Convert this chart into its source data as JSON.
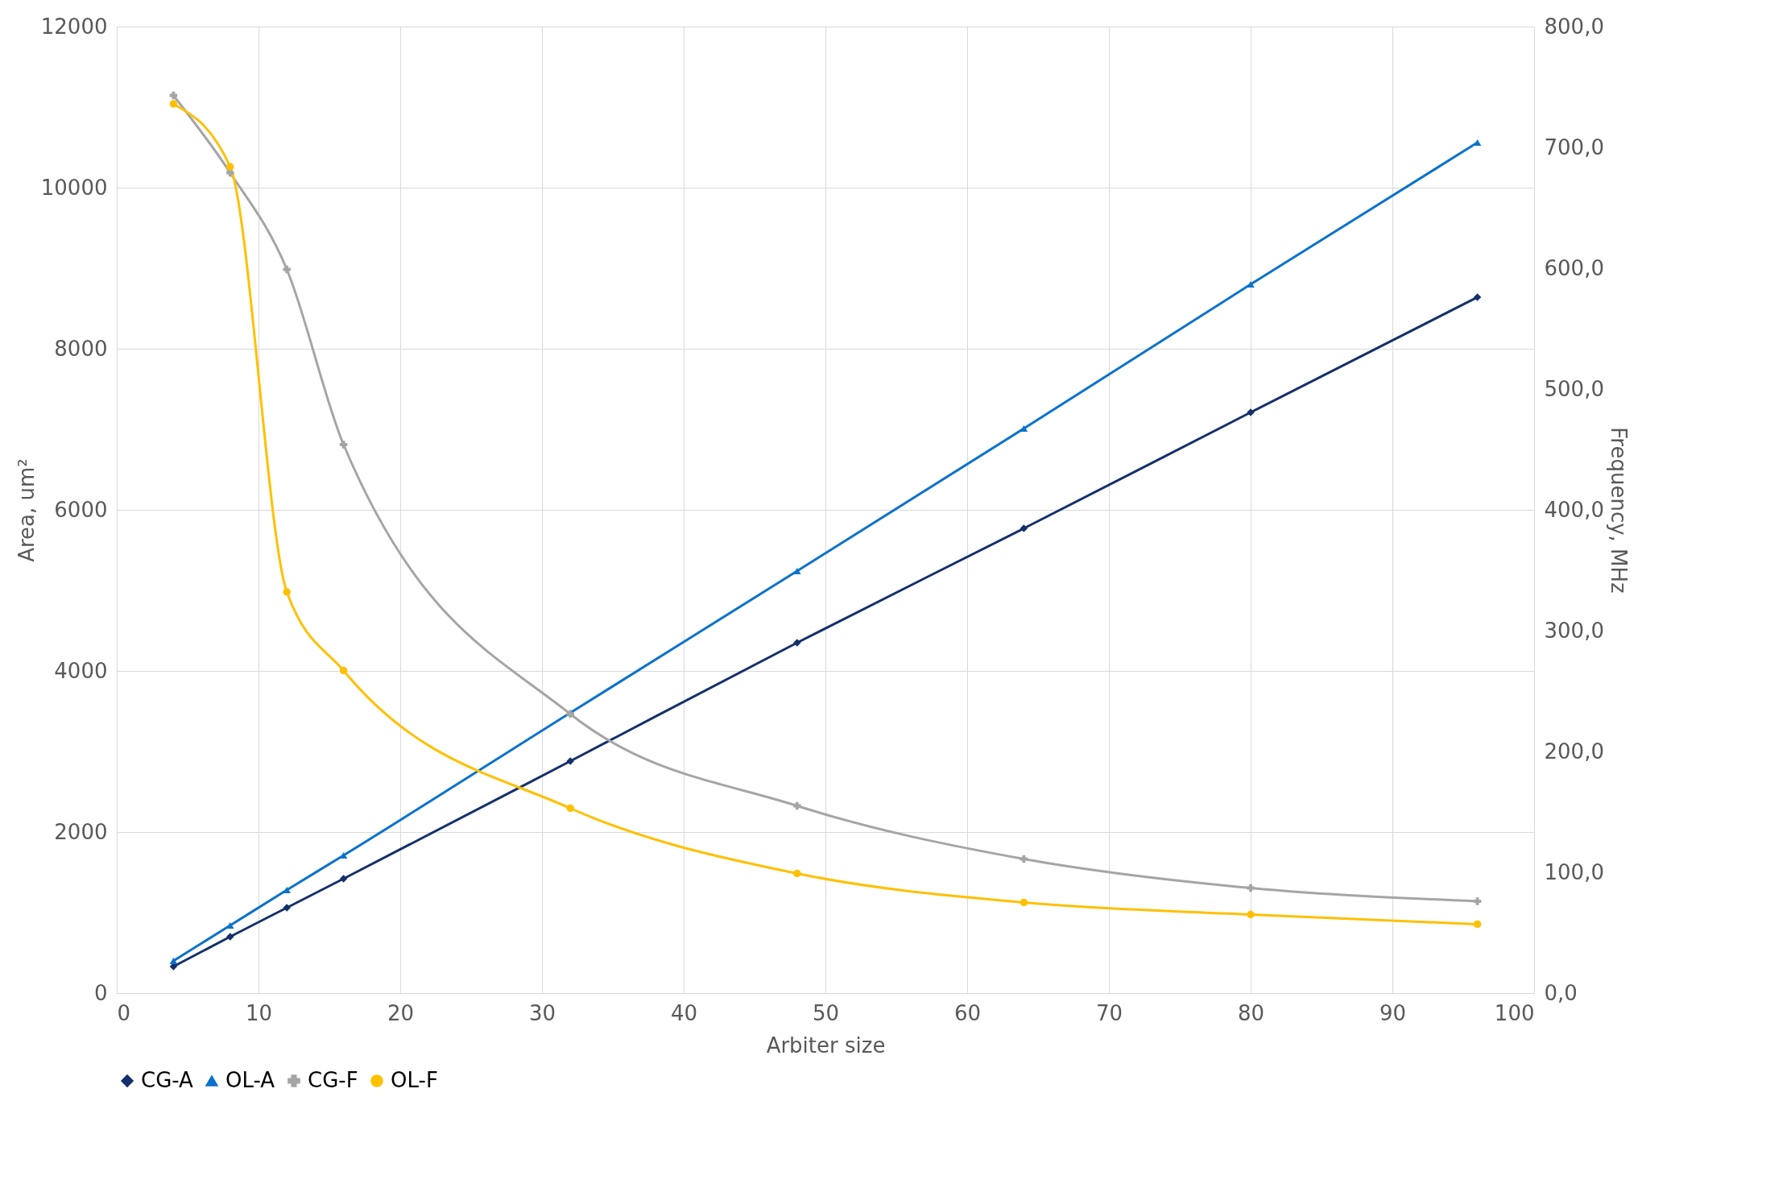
{
  "chart_data": {
    "type": "line",
    "xlabel": "Arbiter size",
    "ylabel": "Area, um²",
    "y2label": "Frequency, MHz",
    "x": [
      4,
      8,
      12,
      16,
      32,
      48,
      64,
      80,
      96
    ],
    "xlim": [
      0,
      100
    ],
    "xticks": [
      0,
      10,
      20,
      30,
      40,
      50,
      60,
      70,
      80,
      90,
      100
    ],
    "ylim": [
      0,
      12000
    ],
    "yticks": [
      0,
      2000,
      4000,
      6000,
      8000,
      10000,
      12000
    ],
    "y2lim": [
      0,
      800
    ],
    "y2ticks": [
      {
        "value": 0,
        "label": "0,0"
      },
      {
        "value": 100,
        "label": "100,0"
      },
      {
        "value": 200,
        "label": "200,0"
      },
      {
        "value": 300,
        "label": "300,0"
      },
      {
        "value": 400,
        "label": "400,0"
      },
      {
        "value": 500,
        "label": "500,0"
      },
      {
        "value": 600,
        "label": "600,0"
      },
      {
        "value": 700,
        "label": "700,0"
      },
      {
        "value": 800,
        "label": "800,0"
      }
    ],
    "grid": true,
    "legend": "bottom",
    "line_style": "solid",
    "series": [
      {
        "name": "CG-A",
        "color": "#14306b",
        "marker": "diamond",
        "values": [
          330,
          700,
          1060,
          1420,
          2880,
          4350,
          5770,
          7210,
          8640
        ]
      },
      {
        "name": "OL-A",
        "color": "#0b72cc",
        "marker": "triangle",
        "values": [
          400,
          840,
          1280,
          1710,
          3480,
          5240,
          7010,
          8800,
          10560
        ]
      },
      {
        "name": "CG-F",
        "color": "#a5a5a5",
        "marker": "cross",
        "axis": "y2",
        "values": [
          743,
          679,
          599,
          454,
          231,
          155,
          111,
          87,
          76
        ]
      },
      {
        "name": "OL-F",
        "color": "#ffc000",
        "marker": "circle",
        "axis": "y2",
        "values": [
          736,
          684,
          332,
          267,
          153,
          99,
          75,
          65,
          57
        ]
      }
    ]
  }
}
